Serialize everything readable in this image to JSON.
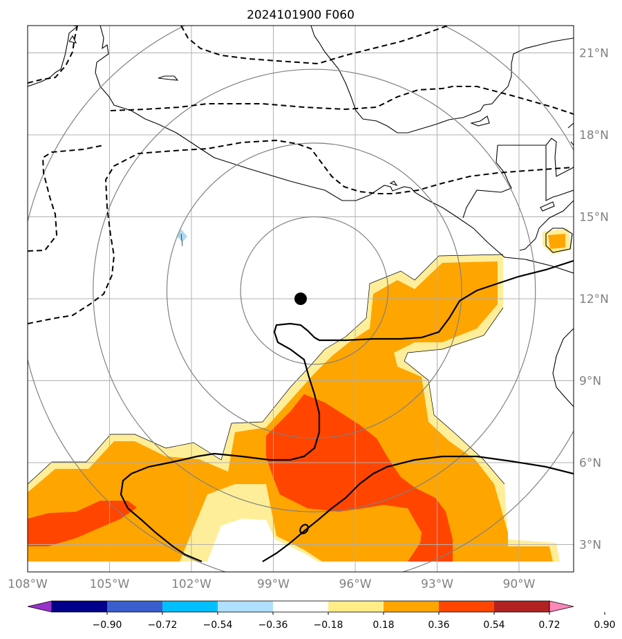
{
  "title": "2024101900 F060",
  "map": {
    "projection": "PlateCarree",
    "lon_range": [
      -108.0,
      -88.0
    ],
    "lat_range": [
      2.0,
      22.0
    ],
    "storm_center": {
      "lon": -97.5,
      "lat": 12.3
    },
    "range_rings_deg": [
      2.7,
      5.4,
      8.1,
      10.8
    ],
    "lat_ticks": [
      {
        "value": 3,
        "label": "3°N"
      },
      {
        "value": 6,
        "label": "6°N"
      },
      {
        "value": 9,
        "label": "9°N"
      },
      {
        "value": 12,
        "label": "12°N"
      },
      {
        "value": 15,
        "label": "15°N"
      },
      {
        "value": 18,
        "label": "18°N"
      },
      {
        "value": 21,
        "label": "21°N"
      }
    ],
    "lon_ticks": [
      {
        "value": -108,
        "label": "108°W"
      },
      {
        "value": -105,
        "label": "105°W"
      },
      {
        "value": -102,
        "label": "102°W"
      },
      {
        "value": -99,
        "label": "99°W"
      },
      {
        "value": -96,
        "label": "96°W"
      },
      {
        "value": -93,
        "label": "93°W"
      },
      {
        "value": -90,
        "label": "90°W"
      }
    ],
    "colors": {
      "grid": "#b0b0b0",
      "rings": "#808080",
      "coast": "#000000",
      "pos_018_036": "#ffee99",
      "pos_036_054": "#ffa500",
      "pos_054_072": "#ff4500",
      "neg_018_036": "#add8f0"
    }
  },
  "colorbar": {
    "colors": [
      "#9932cc",
      "#00008b",
      "#3a5fcd",
      "#00bfff",
      "#b0e0ff",
      "#ffffff",
      "#ffee88",
      "#ffa500",
      "#ff4500",
      "#b22222",
      "#ff88bb"
    ],
    "labels": [
      "−0.90",
      "−0.72",
      "−0.54",
      "−0.36",
      "−0.18",
      "0.18",
      "0.36",
      "0.54",
      "0.72",
      "0.90"
    ]
  }
}
